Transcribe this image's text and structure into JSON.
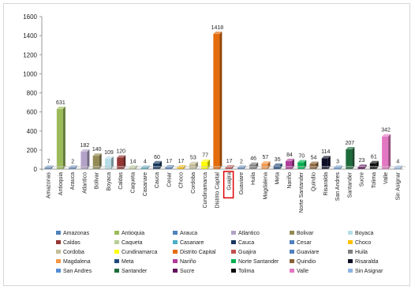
{
  "chart_data": {
    "type": "bar",
    "title": "",
    "xlabel": "",
    "ylabel": "",
    "ylim": [
      0,
      1600
    ],
    "yticks": [
      0,
      200,
      400,
      600,
      800,
      1000,
      1200,
      1400,
      1600
    ],
    "grid": false,
    "legend_position": "bottom",
    "highlighted_category": "Guajira",
    "categories": [
      "Amazonas",
      "Antioquia",
      "Arauca",
      "Atlantico",
      "Bolivar",
      "Boyaca",
      "Caldas",
      "Caqueta",
      "Casanare",
      "Cauca",
      "Cesar",
      "Choco",
      "Cordoba",
      "Cundinamarca",
      "Distrito Capital",
      "Guajira",
      "Guaviare",
      "Huila",
      "Magdalena",
      "Meta",
      "Nariño",
      "Norte Santander",
      "Quindio",
      "Risaralda",
      "San Andres",
      "Santander",
      "Sucre",
      "Tolima",
      "Valle",
      "Sin Asignar"
    ],
    "values": [
      7,
      631,
      2,
      182,
      140,
      109,
      120,
      14,
      4,
      60,
      17,
      17,
      53,
      77,
      1418,
      17,
      2,
      46,
      57,
      35,
      84,
      70,
      54,
      114,
      3,
      207,
      23,
      61,
      342,
      4
    ],
    "colors": [
      "#4f81bd",
      "#9bbb59",
      "#4f81bd",
      "#b3a2c7",
      "#948a54",
      "#b7dee8",
      "#943634",
      "#b9cd96",
      "#4bacc6",
      "#17375e",
      "#4f81bd",
      "#ffc000",
      "#c4bd97",
      "#ffff00",
      "#e46c0a",
      "#c0504d",
      "#4f81bd",
      "#7f7f7f",
      "#f79646",
      "#1f497d",
      "#b03b9a",
      "#00b050",
      "#8c6239",
      "#0d0d26",
      "#558ed5",
      "#1e6b3a",
      "#60105a",
      "#0d0d0d",
      "#e377c2",
      "#8eb4e3"
    ],
    "legend": [
      "Amazonas",
      "Antioquia",
      "Arauca",
      "Atlantico",
      "Bolivar",
      "Boyaca",
      "Caldas",
      "Caqueta",
      "Casanare",
      "Cauca",
      "Cesar",
      "Choco",
      "Cordoba",
      "Cundinamarca",
      "Distrito Capital",
      "Guajira",
      "Guaviare",
      "Huila",
      "Magdalena",
      "Meta",
      "Nariño",
      "Norte Santander",
      "Quindio",
      "Risaralda",
      "San Andres",
      "Santander",
      "Sucre",
      "Tolima",
      "Valle",
      "Sin Asignar"
    ]
  }
}
